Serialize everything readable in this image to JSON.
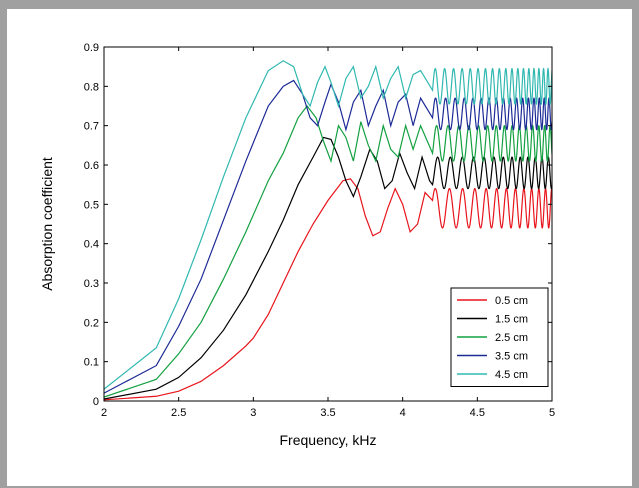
{
  "chart_data": {
    "type": "line",
    "title": "",
    "xlabel": "Frequency, kHz",
    "ylabel": "Absorption coefficient",
    "xlim": [
      2,
      5
    ],
    "ylim": [
      0,
      0.9
    ],
    "x_ticks": [
      "2",
      "2.5",
      "3",
      "3.5",
      "4",
      "4.5",
      "5"
    ],
    "y_ticks": [
      "0",
      "0.1",
      "0.2",
      "0.3",
      "0.4",
      "0.5",
      "0.6",
      "0.7",
      "0.8",
      "0.9"
    ],
    "grid": false,
    "legend_position": "bottom-right",
    "series": [
      {
        "name": "0.5 cm",
        "color": "#e8141c",
        "points": [
          [
            2.0,
            0.003
          ],
          [
            2.35,
            0.012
          ],
          [
            2.5,
            0.025
          ],
          [
            2.65,
            0.05
          ],
          [
            2.8,
            0.09
          ],
          [
            2.95,
            0.14
          ],
          [
            3.0,
            0.16
          ],
          [
            3.1,
            0.22
          ],
          [
            3.2,
            0.3
          ],
          [
            3.3,
            0.38
          ],
          [
            3.4,
            0.45
          ],
          [
            3.5,
            0.51
          ],
          [
            3.6,
            0.56
          ],
          [
            3.65,
            0.565
          ],
          [
            3.7,
            0.54
          ],
          [
            3.75,
            0.47
          ],
          [
            3.8,
            0.42
          ],
          [
            3.85,
            0.43
          ],
          [
            3.9,
            0.49
          ],
          [
            3.95,
            0.54
          ],
          [
            4.0,
            0.5
          ],
          [
            4.05,
            0.43
          ],
          [
            4.1,
            0.45
          ],
          [
            4.15,
            0.53
          ],
          [
            4.2,
            0.51
          ]
        ],
        "oscillation": {
          "from": 4.2,
          "to": 5.0,
          "center": 0.49,
          "amplitude": 0.05,
          "start_period": 0.1,
          "end_period": 0.04
        }
      },
      {
        "name": "1.5 cm",
        "color": "#000000",
        "points": [
          [
            2.0,
            0.005
          ],
          [
            2.35,
            0.03
          ],
          [
            2.5,
            0.06
          ],
          [
            2.65,
            0.11
          ],
          [
            2.8,
            0.18
          ],
          [
            2.95,
            0.27
          ],
          [
            3.1,
            0.38
          ],
          [
            3.2,
            0.46
          ],
          [
            3.3,
            0.55
          ],
          [
            3.4,
            0.62
          ],
          [
            3.47,
            0.67
          ],
          [
            3.52,
            0.665
          ],
          [
            3.57,
            0.62
          ],
          [
            3.62,
            0.56
          ],
          [
            3.67,
            0.52
          ],
          [
            3.72,
            0.57
          ],
          [
            3.78,
            0.64
          ],
          [
            3.83,
            0.61
          ],
          [
            3.88,
            0.54
          ],
          [
            3.93,
            0.56
          ],
          [
            3.98,
            0.63
          ],
          [
            4.03,
            0.58
          ],
          [
            4.08,
            0.54
          ],
          [
            4.13,
            0.62
          ],
          [
            4.18,
            0.56
          ],
          [
            4.2,
            0.55
          ]
        ],
        "oscillation": {
          "from": 4.2,
          "to": 5.0,
          "center": 0.58,
          "amplitude": 0.04,
          "start_period": 0.09,
          "end_period": 0.04
        }
      },
      {
        "name": "2.5 cm",
        "color": "#12a040",
        "points": [
          [
            2.0,
            0.01
          ],
          [
            2.35,
            0.055
          ],
          [
            2.5,
            0.12
          ],
          [
            2.65,
            0.2
          ],
          [
            2.8,
            0.31
          ],
          [
            2.95,
            0.43
          ],
          [
            3.1,
            0.56
          ],
          [
            3.2,
            0.63
          ],
          [
            3.3,
            0.72
          ],
          [
            3.36,
            0.75
          ],
          [
            3.42,
            0.72
          ],
          [
            3.47,
            0.66
          ],
          [
            3.52,
            0.61
          ],
          [
            3.57,
            0.7
          ],
          [
            3.62,
            0.67
          ],
          [
            3.67,
            0.61
          ],
          [
            3.72,
            0.71
          ],
          [
            3.77,
            0.65
          ],
          [
            3.82,
            0.61
          ],
          [
            3.87,
            0.7
          ],
          [
            3.92,
            0.64
          ],
          [
            3.97,
            0.62
          ],
          [
            4.02,
            0.7
          ],
          [
            4.07,
            0.64
          ],
          [
            4.12,
            0.7
          ],
          [
            4.2,
            0.63
          ]
        ],
        "oscillation": {
          "from": 4.2,
          "to": 5.0,
          "center": 0.655,
          "amplitude": 0.045,
          "start_period": 0.08,
          "end_period": 0.035
        }
      },
      {
        "name": "3.5 cm",
        "color": "#1c2a96",
        "points": [
          [
            2.0,
            0.02
          ],
          [
            2.35,
            0.09
          ],
          [
            2.5,
            0.19
          ],
          [
            2.65,
            0.31
          ],
          [
            2.8,
            0.46
          ],
          [
            2.95,
            0.61
          ],
          [
            3.1,
            0.75
          ],
          [
            3.2,
            0.8
          ],
          [
            3.27,
            0.815
          ],
          [
            3.33,
            0.78
          ],
          [
            3.38,
            0.72
          ],
          [
            3.43,
            0.7
          ],
          [
            3.48,
            0.76
          ],
          [
            3.52,
            0.805
          ],
          [
            3.57,
            0.76
          ],
          [
            3.62,
            0.69
          ],
          [
            3.67,
            0.76
          ],
          [
            3.72,
            0.79
          ],
          [
            3.77,
            0.7
          ],
          [
            3.82,
            0.75
          ],
          [
            3.87,
            0.79
          ],
          [
            3.92,
            0.7
          ],
          [
            3.97,
            0.76
          ],
          [
            4.02,
            0.78
          ],
          [
            4.07,
            0.7
          ],
          [
            4.12,
            0.77
          ],
          [
            4.2,
            0.72
          ]
        ],
        "oscillation": {
          "from": 4.2,
          "to": 5.0,
          "center": 0.73,
          "amplitude": 0.04,
          "start_period": 0.07,
          "end_period": 0.03
        }
      },
      {
        "name": "4.5 cm",
        "color": "#30b8b0",
        "points": [
          [
            2.0,
            0.03
          ],
          [
            2.35,
            0.135
          ],
          [
            2.5,
            0.26
          ],
          [
            2.65,
            0.41
          ],
          [
            2.8,
            0.57
          ],
          [
            2.95,
            0.72
          ],
          [
            3.1,
            0.84
          ],
          [
            3.2,
            0.865
          ],
          [
            3.27,
            0.85
          ],
          [
            3.33,
            0.78
          ],
          [
            3.38,
            0.75
          ],
          [
            3.43,
            0.81
          ],
          [
            3.48,
            0.85
          ],
          [
            3.52,
            0.81
          ],
          [
            3.57,
            0.75
          ],
          [
            3.62,
            0.82
          ],
          [
            3.67,
            0.85
          ],
          [
            3.72,
            0.77
          ],
          [
            3.77,
            0.8
          ],
          [
            3.82,
            0.85
          ],
          [
            3.87,
            0.77
          ],
          [
            3.92,
            0.82
          ],
          [
            3.97,
            0.85
          ],
          [
            4.02,
            0.77
          ],
          [
            4.07,
            0.83
          ],
          [
            4.12,
            0.84
          ],
          [
            4.2,
            0.79
          ]
        ],
        "oscillation": {
          "from": 4.2,
          "to": 5.0,
          "center": 0.8,
          "amplitude": 0.045,
          "start_period": 0.065,
          "end_period": 0.028
        }
      }
    ]
  }
}
